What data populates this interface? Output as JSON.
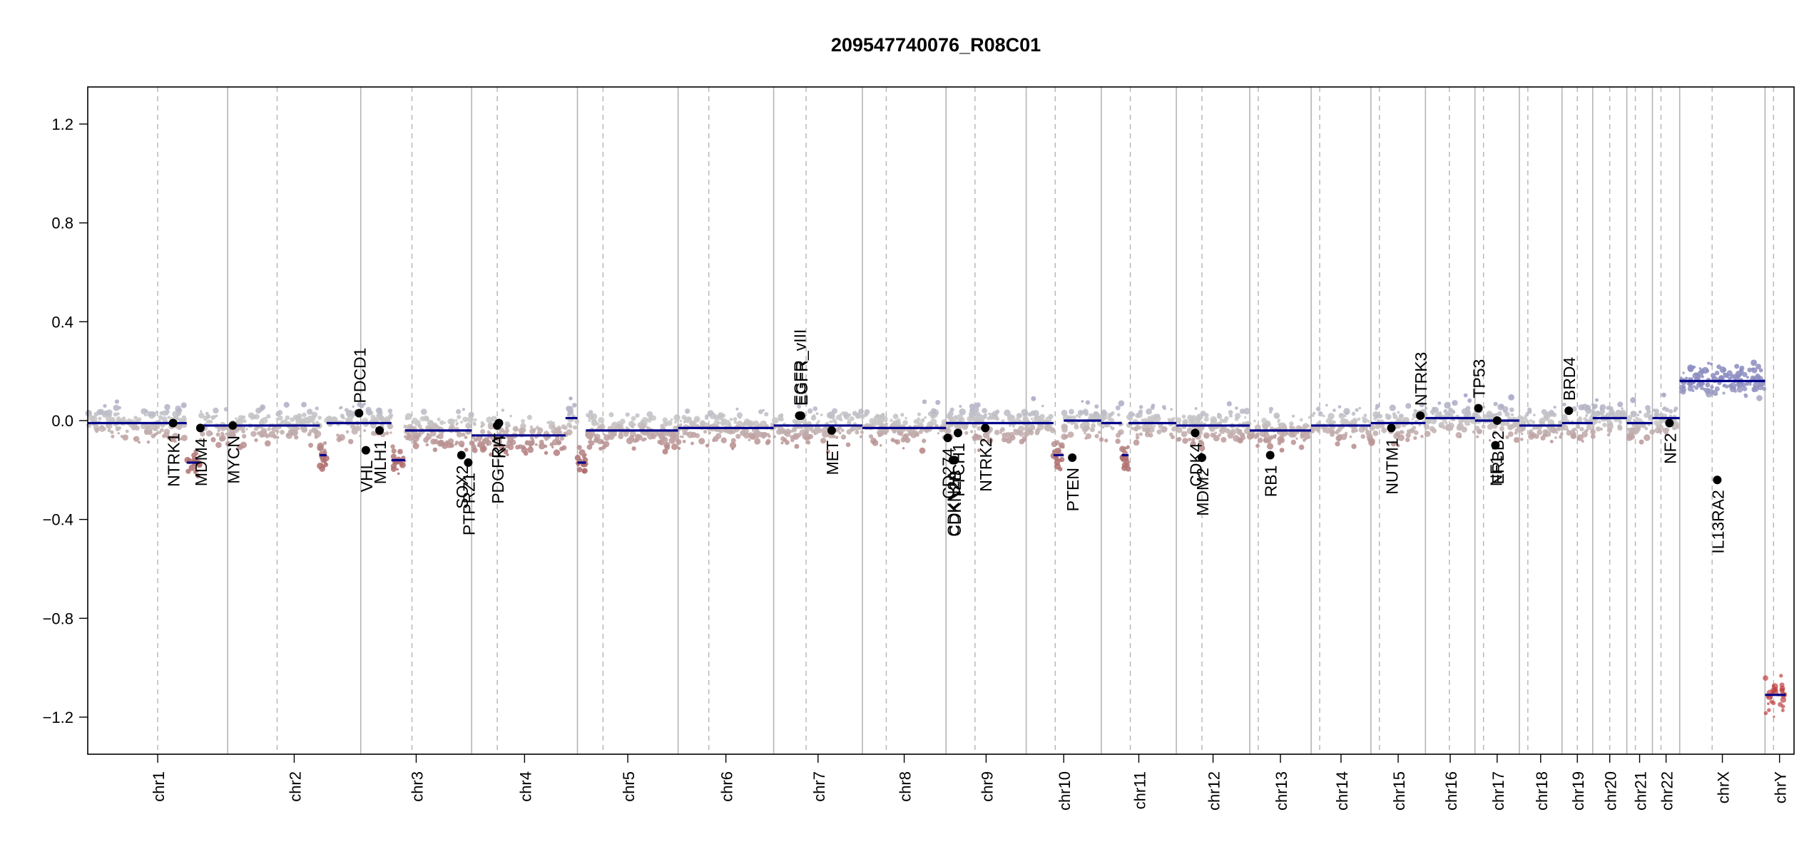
{
  "chart_data": {
    "type": "scatter",
    "title": "209547740076_R08C01",
    "xlabel": "",
    "ylabel": "",
    "ylim": [
      -1.35,
      1.35
    ],
    "yticks": [
      -1.2,
      -0.8,
      -0.4,
      0.0,
      0.4,
      0.8,
      1.2
    ],
    "ytick_labels": [
      "−1.2",
      "−0.8",
      "−0.4",
      "0.0",
      "0.4",
      "0.8",
      "1.2"
    ],
    "grid": false,
    "colors": {
      "gain": "#8c8cc0",
      "neutral": "#c8c8c8",
      "loss": "#b07070",
      "segment": "#00008b",
      "boundary": "#b4b4b4",
      "gene": "#000000"
    },
    "chromosomes": [
      {
        "name": "chr1",
        "start": 0.0,
        "end": 0.082,
        "centro": 0.041
      },
      {
        "name": "chr2",
        "start": 0.082,
        "end": 0.16,
        "centro": 0.111
      },
      {
        "name": "chr3",
        "start": 0.16,
        "end": 0.225,
        "centro": 0.19
      },
      {
        "name": "chr4",
        "start": 0.225,
        "end": 0.287,
        "centro": 0.24
      },
      {
        "name": "chr5",
        "start": 0.287,
        "end": 0.346,
        "centro": 0.302
      },
      {
        "name": "chr6",
        "start": 0.346,
        "end": 0.402,
        "centro": 0.364
      },
      {
        "name": "chr7",
        "start": 0.402,
        "end": 0.454,
        "centro": 0.421
      },
      {
        "name": "chr8",
        "start": 0.454,
        "end": 0.503,
        "centro": 0.468
      },
      {
        "name": "chr9",
        "start": 0.503,
        "end": 0.55,
        "centro": 0.52
      },
      {
        "name": "chr10",
        "start": 0.55,
        "end": 0.594,
        "centro": 0.567
      },
      {
        "name": "chr11",
        "start": 0.594,
        "end": 0.638,
        "centro": 0.611
      },
      {
        "name": "chr12",
        "start": 0.638,
        "end": 0.681,
        "centro": 0.653
      },
      {
        "name": "chr13",
        "start": 0.681,
        "end": 0.717,
        "centro": 0.686
      },
      {
        "name": "chr14",
        "start": 0.717,
        "end": 0.752,
        "centro": 0.722
      },
      {
        "name": "chr15",
        "start": 0.752,
        "end": 0.784,
        "centro": 0.757
      },
      {
        "name": "chr16",
        "start": 0.784,
        "end": 0.813,
        "centro": 0.798
      },
      {
        "name": "chr17",
        "start": 0.813,
        "end": 0.839,
        "centro": 0.818
      },
      {
        "name": "chr18",
        "start": 0.839,
        "end": 0.864,
        "centro": 0.844
      },
      {
        "name": "chr19",
        "start": 0.864,
        "end": 0.882,
        "centro": 0.873
      },
      {
        "name": "chr20",
        "start": 0.882,
        "end": 0.902,
        "centro": 0.892
      },
      {
        "name": "chr21",
        "start": 0.902,
        "end": 0.917,
        "centro": 0.907
      },
      {
        "name": "chr22",
        "start": 0.917,
        "end": 0.933,
        "centro": 0.922
      },
      {
        "name": "chrX",
        "start": 0.933,
        "end": 0.983,
        "centro": 0.952
      },
      {
        "name": "chrY",
        "start": 0.983,
        "end": 1.0,
        "centro": 0.988
      }
    ],
    "segments": [
      {
        "x0": 0.0,
        "x1": 0.058,
        "y": -0.01
      },
      {
        "x0": 0.058,
        "x1": 0.066,
        "y": -0.17
      },
      {
        "x0": 0.066,
        "x1": 0.082,
        "y": -0.02
      },
      {
        "x0": 0.082,
        "x1": 0.136,
        "y": -0.02
      },
      {
        "x0": 0.136,
        "x1": 0.14,
        "y": -0.14
      },
      {
        "x0": 0.14,
        "x1": 0.16,
        "y": -0.01
      },
      {
        "x0": 0.16,
        "x1": 0.178,
        "y": -0.01
      },
      {
        "x0": 0.178,
        "x1": 0.186,
        "y": -0.16
      },
      {
        "x0": 0.186,
        "x1": 0.215,
        "y": -0.04
      },
      {
        "x0": 0.215,
        "x1": 0.225,
        "y": -0.04
      },
      {
        "x0": 0.225,
        "x1": 0.255,
        "y": -0.06
      },
      {
        "x0": 0.255,
        "x1": 0.28,
        "y": -0.06
      },
      {
        "x0": 0.28,
        "x1": 0.287,
        "y": 0.01
      },
      {
        "x0": 0.287,
        "x1": 0.292,
        "y": -0.17
      },
      {
        "x0": 0.292,
        "x1": 0.346,
        "y": -0.04
      },
      {
        "x0": 0.346,
        "x1": 0.402,
        "y": -0.03
      },
      {
        "x0": 0.402,
        "x1": 0.454,
        "y": -0.02
      },
      {
        "x0": 0.454,
        "x1": 0.503,
        "y": -0.03
      },
      {
        "x0": 0.503,
        "x1": 0.55,
        "y": -0.01
      },
      {
        "x0": 0.55,
        "x1": 0.566,
        "y": -0.01
      },
      {
        "x0": 0.566,
        "x1": 0.572,
        "y": -0.14
      },
      {
        "x0": 0.572,
        "x1": 0.594,
        "y": 0.0
      },
      {
        "x0": 0.594,
        "x1": 0.606,
        "y": -0.01
      },
      {
        "x0": 0.606,
        "x1": 0.61,
        "y": -0.14
      },
      {
        "x0": 0.61,
        "x1": 0.638,
        "y": -0.01
      },
      {
        "x0": 0.638,
        "x1": 0.681,
        "y": -0.02
      },
      {
        "x0": 0.681,
        "x1": 0.717,
        "y": -0.04
      },
      {
        "x0": 0.717,
        "x1": 0.752,
        "y": -0.02
      },
      {
        "x0": 0.752,
        "x1": 0.784,
        "y": -0.01
      },
      {
        "x0": 0.784,
        "x1": 0.813,
        "y": 0.01
      },
      {
        "x0": 0.813,
        "x1": 0.839,
        "y": 0.0
      },
      {
        "x0": 0.839,
        "x1": 0.864,
        "y": -0.02
      },
      {
        "x0": 0.864,
        "x1": 0.882,
        "y": -0.01
      },
      {
        "x0": 0.882,
        "x1": 0.902,
        "y": 0.01
      },
      {
        "x0": 0.902,
        "x1": 0.917,
        "y": -0.01
      },
      {
        "x0": 0.917,
        "x1": 0.933,
        "y": 0.01
      },
      {
        "x0": 0.933,
        "x1": 0.983,
        "y": 0.16
      },
      {
        "x0": 0.983,
        "x1": 0.995,
        "y": -1.11
      }
    ],
    "genes": [
      {
        "name": "NTRK1",
        "x": 0.05,
        "y": -0.01,
        "side": "below"
      },
      {
        "name": "MDM4",
        "x": 0.066,
        "y": -0.03,
        "side": "below"
      },
      {
        "name": "MYCN",
        "x": 0.085,
        "y": -0.02,
        "side": "below"
      },
      {
        "name": "PDCD1",
        "x": 0.159,
        "y": 0.03,
        "side": "above"
      },
      {
        "name": "VHL",
        "x": 0.163,
        "y": -0.12,
        "side": "below"
      },
      {
        "name": "MLH1",
        "x": 0.171,
        "y": -0.04,
        "side": "below"
      },
      {
        "name": "SOX2",
        "x": 0.219,
        "y": -0.14,
        "side": "below"
      },
      {
        "name": "PTPRZ1",
        "x": 0.223,
        "y": -0.17,
        "side": "below"
      },
      {
        "name": "PDGFRA",
        "x": 0.24,
        "y": -0.02,
        "side": "below"
      },
      {
        "name": "KIT",
        "x": 0.241,
        "y": -0.01,
        "side": "below"
      },
      {
        "name": "EGFR_vIII",
        "x": 0.417,
        "y": 0.02,
        "side": "above"
      },
      {
        "name": "EGFR",
        "x": 0.418,
        "y": 0.02,
        "side": "above"
      },
      {
        "name": "MET",
        "x": 0.436,
        "y": -0.04,
        "side": "below"
      },
      {
        "name": "CD274",
        "x": 0.504,
        "y": -0.07,
        "side": "below"
      },
      {
        "name": "CDKN2A",
        "x": 0.507,
        "y": -0.16,
        "side": "below"
      },
      {
        "name": "CDKN2B",
        "x": 0.508,
        "y": -0.16,
        "side": "below"
      },
      {
        "name": "PTCH1",
        "x": 0.51,
        "y": -0.05,
        "side": "below"
      },
      {
        "name": "NTRK2",
        "x": 0.526,
        "y": -0.03,
        "side": "below"
      },
      {
        "name": "PTEN",
        "x": 0.577,
        "y": -0.15,
        "side": "below"
      },
      {
        "name": "CDK4",
        "x": 0.649,
        "y": -0.05,
        "side": "below"
      },
      {
        "name": "MDM2",
        "x": 0.653,
        "y": -0.15,
        "side": "below"
      },
      {
        "name": "RB1",
        "x": 0.693,
        "y": -0.14,
        "side": "below"
      },
      {
        "name": "NUTM1",
        "x": 0.764,
        "y": -0.03,
        "side": "below"
      },
      {
        "name": "NTRK3",
        "x": 0.781,
        "y": 0.02,
        "side": "above"
      },
      {
        "name": "TP53",
        "x": 0.815,
        "y": 0.05,
        "side": "above"
      },
      {
        "name": "NF1",
        "x": 0.825,
        "y": -0.1,
        "side": "below"
      },
      {
        "name": "ERBB2",
        "x": 0.826,
        "y": 0.0,
        "side": "below"
      },
      {
        "name": "BRD4",
        "x": 0.868,
        "y": 0.04,
        "side": "above"
      },
      {
        "name": "NF2",
        "x": 0.927,
        "y": -0.01,
        "side": "below"
      },
      {
        "name": "IL13RA2",
        "x": 0.955,
        "y": -0.24,
        "side": "below"
      }
    ]
  }
}
